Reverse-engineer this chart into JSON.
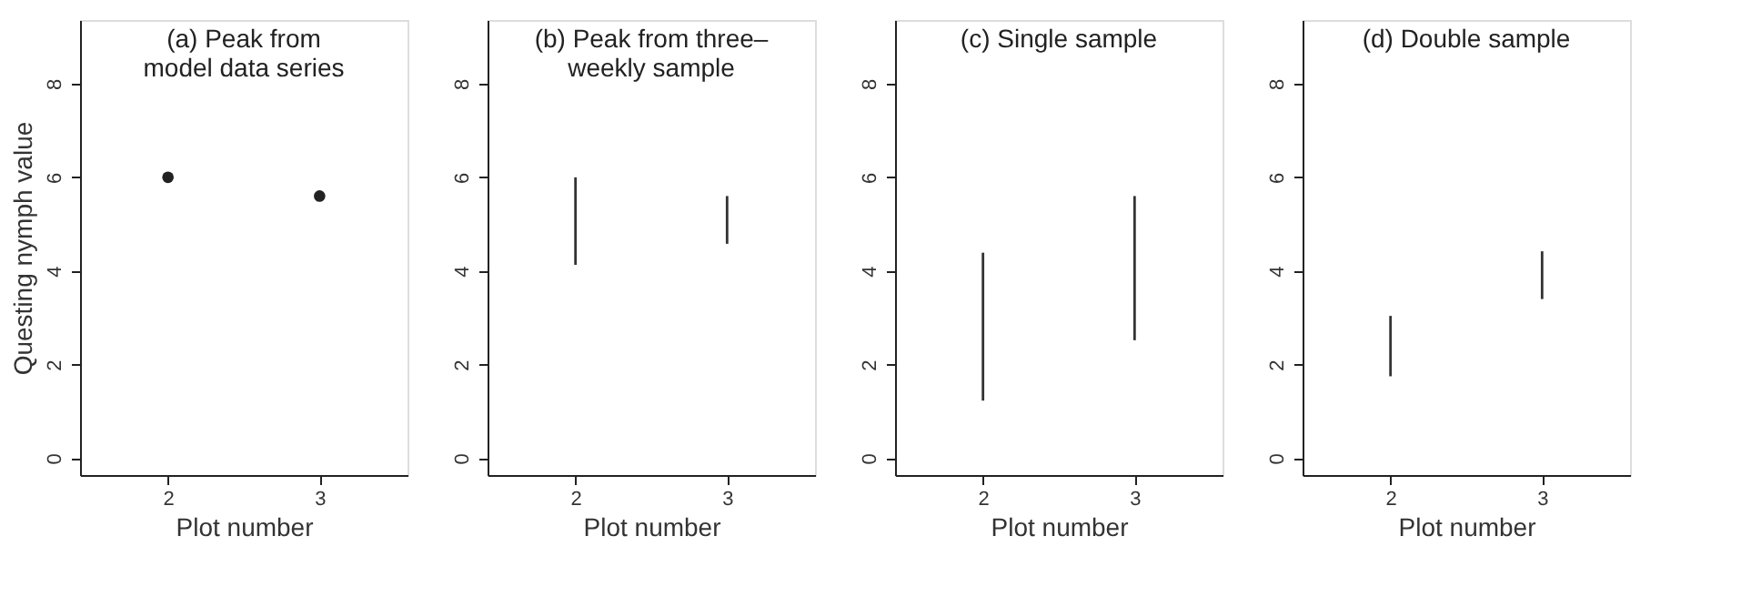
{
  "chart_data": [
    {
      "type": "scatter",
      "title": "(a) Peak from\nmodel data series",
      "xlabel": "Plot number",
      "ylabel": "Questing nymph value",
      "categories": [
        "2",
        "3"
      ],
      "series": [
        {
          "color": "#222222",
          "values": [
            6.0,
            5.6
          ]
        }
      ],
      "marker": "circle",
      "ylim": [
        -0.36,
        9.36
      ],
      "yticks": [
        0,
        2,
        4,
        6,
        8
      ],
      "grid": false
    },
    {
      "type": "bar",
      "title": "(b) Peak from three–\nweekly sample",
      "xlabel": "Plot number",
      "categories": [
        "2",
        "3"
      ],
      "series": [
        {
          "color": "#333333",
          "values": [
            1.87,
            1.02
          ],
          "base": [
            4.13,
            4.58
          ]
        }
      ],
      "ylim": [
        -0.36,
        9.36
      ],
      "yticks": [
        0,
        2,
        4,
        6,
        8
      ],
      "grid": false
    },
    {
      "type": "bar",
      "title": "(c) Single sample",
      "xlabel": "Plot number",
      "categories": [
        "2",
        "3"
      ],
      "series": [
        {
          "color": "#333333",
          "values": [
            3.16,
            3.08
          ],
          "base": [
            1.23,
            2.52
          ]
        }
      ],
      "ylim": [
        -0.36,
        9.36
      ],
      "yticks": [
        0,
        2,
        4,
        6,
        8
      ],
      "grid": false
    },
    {
      "type": "bar",
      "title": "(d) Double sample",
      "xlabel": "Plot number",
      "categories": [
        "2",
        "3"
      ],
      "series": [
        {
          "color": "#333333",
          "values": [
            1.29,
            1.02
          ],
          "base": [
            1.75,
            3.4
          ]
        }
      ],
      "ylim": [
        -0.36,
        9.36
      ],
      "yticks": [
        0,
        2,
        4,
        6,
        8
      ],
      "grid": false
    }
  ]
}
